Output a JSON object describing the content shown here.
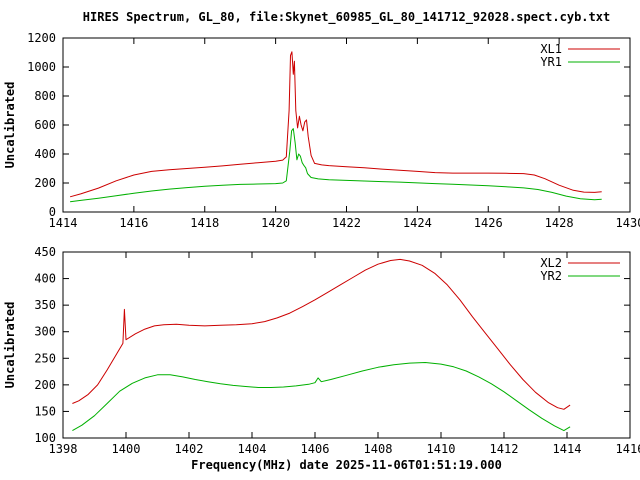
{
  "title": "HIRES Spectrum, GL_80, file:Skynet_60985_GL_80_141712_92028.spect.cyb.txt",
  "colors": {
    "series_red": "#cc0000",
    "series_green": "#00b000",
    "axis": "#000000",
    "background": "#ffffff"
  },
  "chart_data": [
    {
      "type": "line",
      "panel": "top",
      "title": "",
      "xlabel": "",
      "ylabel": "Uncalibrated",
      "xlim": [
        1414,
        1430
      ],
      "ylim": [
        0,
        1200
      ],
      "xticks": [
        1414,
        1416,
        1418,
        1420,
        1422,
        1424,
        1426,
        1428,
        1430
      ],
      "yticks": [
        0,
        200,
        400,
        600,
        800,
        1000,
        1200
      ],
      "grid": false,
      "legend_position": "top-right",
      "series": [
        {
          "name": "XL1",
          "color": "#cc0000",
          "points": [
            [
              1414.2,
              105
            ],
            [
              1414.5,
              125
            ],
            [
              1415,
              165
            ],
            [
              1415.5,
              215
            ],
            [
              1416,
              255
            ],
            [
              1416.5,
              280
            ],
            [
              1417,
              292
            ],
            [
              1417.5,
              300
            ],
            [
              1418,
              308
            ],
            [
              1418.5,
              318
            ],
            [
              1419,
              330
            ],
            [
              1419.5,
              340
            ],
            [
              1420,
              350
            ],
            [
              1420.2,
              358
            ],
            [
              1420.3,
              380
            ],
            [
              1420.38,
              700
            ],
            [
              1420.42,
              1080
            ],
            [
              1420.46,
              1105
            ],
            [
              1420.5,
              950
            ],
            [
              1420.53,
              1040
            ],
            [
              1420.57,
              700
            ],
            [
              1420.62,
              580
            ],
            [
              1420.67,
              660
            ],
            [
              1420.72,
              600
            ],
            [
              1420.77,
              560
            ],
            [
              1420.82,
              620
            ],
            [
              1420.87,
              635
            ],
            [
              1420.92,
              520
            ],
            [
              1421.0,
              390
            ],
            [
              1421.1,
              335
            ],
            [
              1421.3,
              325
            ],
            [
              1421.5,
              320
            ],
            [
              1422,
              312
            ],
            [
              1422.5,
              305
            ],
            [
              1423,
              296
            ],
            [
              1423.5,
              288
            ],
            [
              1424,
              280
            ],
            [
              1424.5,
              272
            ],
            [
              1425,
              268
            ],
            [
              1425.5,
              268
            ],
            [
              1426,
              268
            ],
            [
              1426.5,
              267
            ],
            [
              1427,
              265
            ],
            [
              1427.3,
              255
            ],
            [
              1427.6,
              230
            ],
            [
              1428,
              185
            ],
            [
              1428.4,
              150
            ],
            [
              1428.7,
              137
            ],
            [
              1429,
              135
            ],
            [
              1429.2,
              140
            ]
          ]
        },
        {
          "name": "YR1",
          "color": "#00b000",
          "points": [
            [
              1414.2,
              70
            ],
            [
              1414.5,
              80
            ],
            [
              1415,
              95
            ],
            [
              1415.5,
              112
            ],
            [
              1416,
              130
            ],
            [
              1416.5,
              145
            ],
            [
              1417,
              158
            ],
            [
              1417.5,
              168
            ],
            [
              1418,
              178
            ],
            [
              1418.5,
              185
            ],
            [
              1419,
              190
            ],
            [
              1419.5,
              193
            ],
            [
              1420,
              196
            ],
            [
              1420.2,
              200
            ],
            [
              1420.3,
              215
            ],
            [
              1420.4,
              420
            ],
            [
              1420.45,
              560
            ],
            [
              1420.5,
              575
            ],
            [
              1420.55,
              480
            ],
            [
              1420.6,
              360
            ],
            [
              1420.65,
              400
            ],
            [
              1420.7,
              385
            ],
            [
              1420.75,
              340
            ],
            [
              1420.8,
              320
            ],
            [
              1420.85,
              305
            ],
            [
              1420.9,
              265
            ],
            [
              1421,
              238
            ],
            [
              1421.2,
              228
            ],
            [
              1421.5,
              222
            ],
            [
              1422,
              218
            ],
            [
              1422.5,
              214
            ],
            [
              1423,
              210
            ],
            [
              1423.5,
              206
            ],
            [
              1424,
              201
            ],
            [
              1424.5,
              196
            ],
            [
              1425,
              191
            ],
            [
              1425.5,
              186
            ],
            [
              1426,
              181
            ],
            [
              1426.5,
              174
            ],
            [
              1427,
              166
            ],
            [
              1427.4,
              155
            ],
            [
              1427.8,
              135
            ],
            [
              1428.2,
              110
            ],
            [
              1428.6,
              92
            ],
            [
              1429,
              85
            ],
            [
              1429.2,
              88
            ]
          ]
        }
      ]
    },
    {
      "type": "line",
      "panel": "bottom",
      "title": "",
      "xlabel": "Frequency(MHz) date 2025-11-06T01:51:19.000",
      "ylabel": "Uncalibrated",
      "xlim": [
        1398,
        1416
      ],
      "ylim": [
        100,
        450
      ],
      "xticks": [
        1398,
        1400,
        1402,
        1404,
        1406,
        1408,
        1410,
        1412,
        1414,
        1416
      ],
      "yticks": [
        100,
        150,
        200,
        250,
        300,
        350,
        400,
        450
      ],
      "grid": false,
      "legend_position": "top-right",
      "series": [
        {
          "name": "XL2",
          "color": "#cc0000",
          "points": [
            [
              1398.3,
              165
            ],
            [
              1398.5,
              170
            ],
            [
              1398.8,
              182
            ],
            [
              1399.1,
              200
            ],
            [
              1399.4,
              228
            ],
            [
              1399.7,
              258
            ],
            [
              1399.9,
              278
            ],
            [
              1399.95,
              342
            ],
            [
              1400.0,
              285
            ],
            [
              1400.3,
              296
            ],
            [
              1400.6,
              305
            ],
            [
              1400.9,
              311
            ],
            [
              1401.2,
              313
            ],
            [
              1401.6,
              314
            ],
            [
              1402,
              312
            ],
            [
              1402.5,
              311
            ],
            [
              1403,
              312
            ],
            [
              1403.5,
              313
            ],
            [
              1404,
              315
            ],
            [
              1404.4,
              319
            ],
            [
              1404.8,
              326
            ],
            [
              1405.2,
              335
            ],
            [
              1405.6,
              347
            ],
            [
              1406,
              360
            ],
            [
              1406.4,
              374
            ],
            [
              1406.8,
              388
            ],
            [
              1407.2,
              402
            ],
            [
              1407.6,
              416
            ],
            [
              1408,
              427
            ],
            [
              1408.4,
              434
            ],
            [
              1408.7,
              436
            ],
            [
              1409,
              433
            ],
            [
              1409.4,
              425
            ],
            [
              1409.8,
              410
            ],
            [
              1410.2,
              388
            ],
            [
              1410.6,
              360
            ],
            [
              1411,
              328
            ],
            [
              1411.4,
              298
            ],
            [
              1411.8,
              268
            ],
            [
              1412.2,
              238
            ],
            [
              1412.6,
              210
            ],
            [
              1413,
              186
            ],
            [
              1413.4,
              167
            ],
            [
              1413.7,
              157
            ],
            [
              1413.9,
              154
            ],
            [
              1414.1,
              162
            ]
          ]
        },
        {
          "name": "YR2",
          "color": "#00b000",
          "points": [
            [
              1398.3,
              114
            ],
            [
              1398.6,
              124
            ],
            [
              1399,
              142
            ],
            [
              1399.4,
              165
            ],
            [
              1399.8,
              188
            ],
            [
              1400.2,
              203
            ],
            [
              1400.6,
              213
            ],
            [
              1401,
              219
            ],
            [
              1401.4,
              219
            ],
            [
              1401.8,
              215
            ],
            [
              1402.2,
              210
            ],
            [
              1402.6,
              206
            ],
            [
              1403,
              202
            ],
            [
              1403.4,
              199
            ],
            [
              1403.8,
              197
            ],
            [
              1404.2,
              195
            ],
            [
              1404.6,
              195
            ],
            [
              1405,
              196
            ],
            [
              1405.4,
              198
            ],
            [
              1405.8,
              201
            ],
            [
              1406.0,
              204
            ],
            [
              1406.1,
              213
            ],
            [
              1406.2,
              206
            ],
            [
              1406.5,
              210
            ],
            [
              1407,
              218
            ],
            [
              1407.5,
              226
            ],
            [
              1408,
              233
            ],
            [
              1408.5,
              238
            ],
            [
              1409,
              241
            ],
            [
              1409.5,
              242
            ],
            [
              1410,
              239
            ],
            [
              1410.4,
              234
            ],
            [
              1410.8,
              226
            ],
            [
              1411.2,
              215
            ],
            [
              1411.6,
              202
            ],
            [
              1412,
              187
            ],
            [
              1412.4,
              170
            ],
            [
              1412.8,
              153
            ],
            [
              1413.2,
              137
            ],
            [
              1413.6,
              123
            ],
            [
              1413.9,
              114
            ],
            [
              1414.1,
              121
            ]
          ]
        }
      ]
    }
  ]
}
